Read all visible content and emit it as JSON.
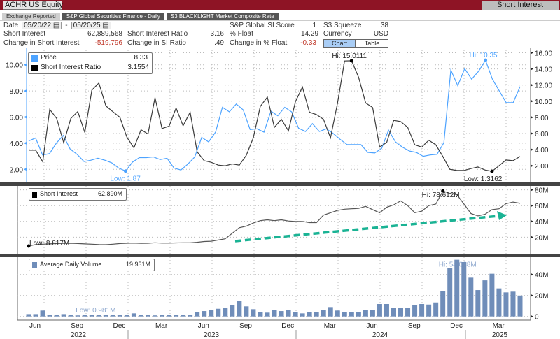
{
  "header": {
    "security": "ACHR US Equity",
    "function": "Short Interest",
    "accent": "#8e1425"
  },
  "tabs": [
    {
      "label": "Exchange Reported",
      "active": true
    },
    {
      "label": "S&P Global Securities Finance - Daily",
      "active": false
    },
    {
      "label": "S3 BLACKLIGHT Market Composite Rate",
      "active": false
    }
  ],
  "date": {
    "label": "Date",
    "start": "05/20/22",
    "sep": "-",
    "end": "05/20/25"
  },
  "stats": {
    "short_interest": {
      "label": "Short Interest",
      "value": "62,889,568"
    },
    "si_ratio": {
      "label": "Short Interest Ratio",
      "value": "3.16"
    },
    "pct_float": {
      "label": "% Float",
      "value": "14.29"
    },
    "chg_si": {
      "label": "Change in Short Interest",
      "value": "-519,796"
    },
    "chg_si_ratio": {
      "label": "Change in SI Ratio",
      "value": ".49"
    },
    "chg_pct_float": {
      "label": "Change in % Float",
      "value": "-0.33"
    },
    "sp_score": {
      "label": "S&P Global SI Score",
      "value": "1"
    },
    "s3_squeeze": {
      "label": "S3 Squeeze",
      "value": "38"
    },
    "currency": {
      "label": "Currency",
      "value": "USD"
    }
  },
  "view_toggle": {
    "chart": "Chart",
    "table": "Table",
    "selected": "Chart"
  },
  "chart_data": [
    {
      "type": "line",
      "panel": "price",
      "date_range": [
        "2022-05-20",
        "2025-05-20"
      ],
      "legend": [
        {
          "name": "Price",
          "value": "8.33",
          "color": "#4da3ff"
        },
        {
          "name": "Short Interest Ratio",
          "value": "3.1554",
          "color": "#000000"
        }
      ],
      "left_axis": {
        "ticks": [
          "2.00",
          "4.00",
          "6.00",
          "8.00",
          "10.00"
        ],
        "range": [
          1.3,
          11.5
        ]
      },
      "right_axis": {
        "ticks": [
          "2.00",
          "4.00",
          "6.00",
          "8.00",
          "10.00",
          "12.00",
          "14.00",
          "16.00"
        ],
        "range": [
          0,
          16.3
        ]
      },
      "annotations": {
        "price_low": "Low: 1.87",
        "price_hi": "Hi: 10.35",
        "ratio_hi": "Hi: 15.0111",
        "ratio_low": "Low: 1.3162"
      },
      "series": [
        {
          "name": "Price",
          "axis": "left",
          "values": [
            4.17,
            4.4,
            3.1,
            3.2,
            4.0,
            4.6,
            3.55,
            3.15,
            2.6,
            2.7,
            2.85,
            2.7,
            2.5,
            2.1,
            1.87,
            2.55,
            2.9,
            2.9,
            2.95,
            2.75,
            2.85,
            2.1,
            1.95,
            2.4,
            2.95,
            4.45,
            4.1,
            4.85,
            6.75,
            6.4,
            7.0,
            6.55,
            5.05,
            5.1,
            4.85,
            6.45,
            6.1,
            6.75,
            6.4,
            5.15,
            4.9,
            5.5,
            4.9,
            5.1,
            4.75,
            4.3,
            3.9,
            3.9,
            3.9,
            3.3,
            3.25,
            3.6,
            5.0,
            4.1,
            3.7,
            3.4,
            3.3,
            3.0,
            3.1,
            3.15,
            4.05,
            9.6,
            8.4,
            9.7,
            8.9,
            9.5,
            10.35,
            8.9,
            8.0,
            7.1,
            7.1,
            8.33
          ]
        },
        {
          "name": "Short Interest Ratio",
          "axis": "right",
          "values": [
            3.93,
            3.93,
            2.49,
            8.99,
            7.86,
            4.83,
            7.86,
            8.72,
            6.13,
            11.38,
            12.25,
            9.42,
            8.7,
            8.0,
            5.52,
            4.22,
            6.47,
            5.95,
            10.43,
            6.62,
            6.91,
            9.16,
            6.96,
            8.64,
            3.73,
            2.63,
            2.43,
            2.09,
            2.0,
            2.23,
            2.09,
            3.3,
            5.46,
            9.36,
            10.51,
            6.76,
            7.77,
            6.33,
            9.94,
            11.76,
            8.64,
            8.35,
            7.77,
            5.46,
            9.79,
            14.99,
            15.0111,
            12.97,
            9.79,
            9.22,
            4.31,
            4.89,
            7.63,
            7.48,
            6.76,
            4.6,
            4.31,
            5.17,
            4.6,
            3.15,
            1.57,
            1.42,
            1.42,
            1.65,
            1.85,
            1.48,
            1.3162,
            2.0,
            2.72,
            2.63,
            3.1554
          ]
        }
      ]
    },
    {
      "type": "line",
      "panel": "short_interest",
      "legend": [
        {
          "name": "Short Interest",
          "value": "62.890M",
          "color": "#000000"
        }
      ],
      "right_axis": {
        "ticks": [
          "20M",
          "40M",
          "60M",
          "80M"
        ],
        "range": [
          0,
          80
        ]
      },
      "annotations": {
        "low": "Low: 8.817M",
        "hi": "Hi: 78.612M",
        "trend_arrow_color": "#1ab394"
      },
      "series": [
        {
          "name": "Short Interest",
          "unit": "M",
          "values": [
            8.817,
            10.8,
            11.2,
            11.6,
            12.0,
            12.2,
            12.4,
            12.0,
            11.6,
            11.2,
            10.8,
            10.6,
            11.2,
            12.0,
            12.4,
            12.6,
            12.2,
            12.4,
            13.0,
            12.6,
            12.6,
            12.8,
            13.0,
            13.0,
            13.6,
            14.6,
            15.0,
            16.5,
            18,
            25,
            32,
            34,
            38,
            41,
            42,
            41,
            42,
            40.5,
            40,
            40,
            38.5,
            38.5,
            48,
            51,
            54,
            55.5,
            56,
            56.5,
            59,
            55,
            51,
            58,
            61,
            66,
            60,
            51,
            53,
            60,
            62,
            78.612,
            75.5,
            74,
            62,
            50,
            47,
            49,
            55,
            56,
            62.5,
            64.5,
            62.89
          ]
        }
      ]
    },
    {
      "type": "bar",
      "panel": "volume",
      "legend": [
        {
          "name": "Average Daily Volume",
          "value": "19.931M",
          "color": "#6f8db9"
        }
      ],
      "right_axis": {
        "ticks": [
          "0",
          "20M",
          "40M"
        ],
        "range": [
          0,
          56
        ]
      },
      "annotations": {
        "low": "Low: 0.981M",
        "hi": "Hi: 54.038M"
      },
      "series": [
        {
          "name": "Average Daily Volume",
          "unit": "M",
          "values": [
            2.2,
            2.2,
            5.6,
            1.3,
            1.3,
            2.2,
            1.3,
            0.981,
            1.3,
            1.8,
            1.3,
            1.8,
            1.3,
            1.8,
            1.3,
            2.9,
            1.8,
            1.3,
            1.0,
            1.3,
            1.8,
            1.3,
            1.3,
            1.3,
            4,
            5.1,
            6.2,
            7.3,
            8.4,
            11.1,
            15.1,
            9.6,
            6.9,
            4,
            3.6,
            5.8,
            5.1,
            6.2,
            4,
            2.9,
            4.4,
            4.4,
            5.8,
            8.9,
            5.6,
            4,
            4,
            4,
            5.8,
            5.8,
            11.8,
            11.8,
            8,
            8.4,
            8.4,
            10.7,
            11.8,
            11.3,
            13.3,
            24.4,
            46.2,
            54.038,
            51.8,
            36.9,
            25.1,
            34.4,
            40.7,
            26.7,
            22.9,
            23.6,
            19.931
          ]
        }
      ]
    }
  ],
  "x_axis": {
    "months": [
      "Jun",
      "Sep",
      "Dec",
      "Mar",
      "Jun",
      "Sep",
      "Dec",
      "Mar",
      "Jun",
      "Sep",
      "Dec",
      "Mar"
    ],
    "years": [
      "2022",
      "2023",
      "2024",
      "2025"
    ]
  }
}
